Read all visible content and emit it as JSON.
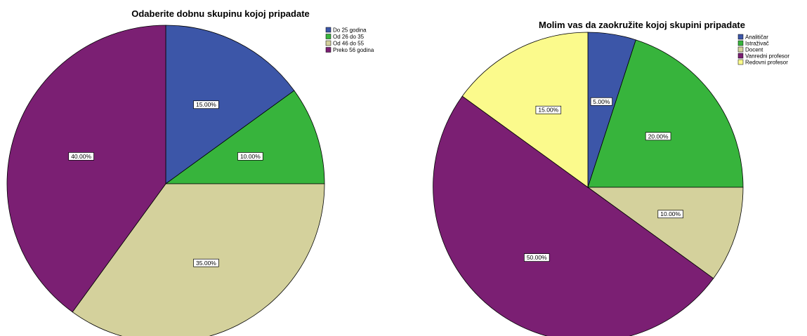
{
  "chart_data": [
    {
      "type": "pie",
      "title": "Odaberite dobnu skupinu kojoj pripadate",
      "categories": [
        "Do 25 godina",
        "Od 26 do 35",
        "Od 46 do 55",
        "Preko 56 godina"
      ],
      "values": [
        15,
        10,
        35,
        40
      ],
      "labels": [
        "15.00%",
        "10.00%",
        "35.00%",
        "40.00%"
      ],
      "colors": [
        "#3c56a8",
        "#37b43c",
        "#d4d19c",
        "#7b1f73"
      ],
      "start_angle_deg": 0,
      "direction": "clockwise",
      "legend_position": "top-right"
    },
    {
      "type": "pie",
      "title": "Molim vas da zaokružite kojoj skupini pripadate",
      "categories": [
        "Analitičar",
        "Istraživač",
        "Docent",
        "Vanredni profesor",
        "Redovni profesor"
      ],
      "values": [
        5,
        20,
        10,
        50,
        15
      ],
      "labels": [
        "5.00%",
        "20.00%",
        "10.00%",
        "50.00%",
        "15.00%"
      ],
      "colors": [
        "#3c56a8",
        "#37b43c",
        "#d4d19c",
        "#7b1f73",
        "#fbfa8c"
      ],
      "start_angle_deg": 0,
      "direction": "clockwise",
      "legend_position": "top-right"
    }
  ]
}
